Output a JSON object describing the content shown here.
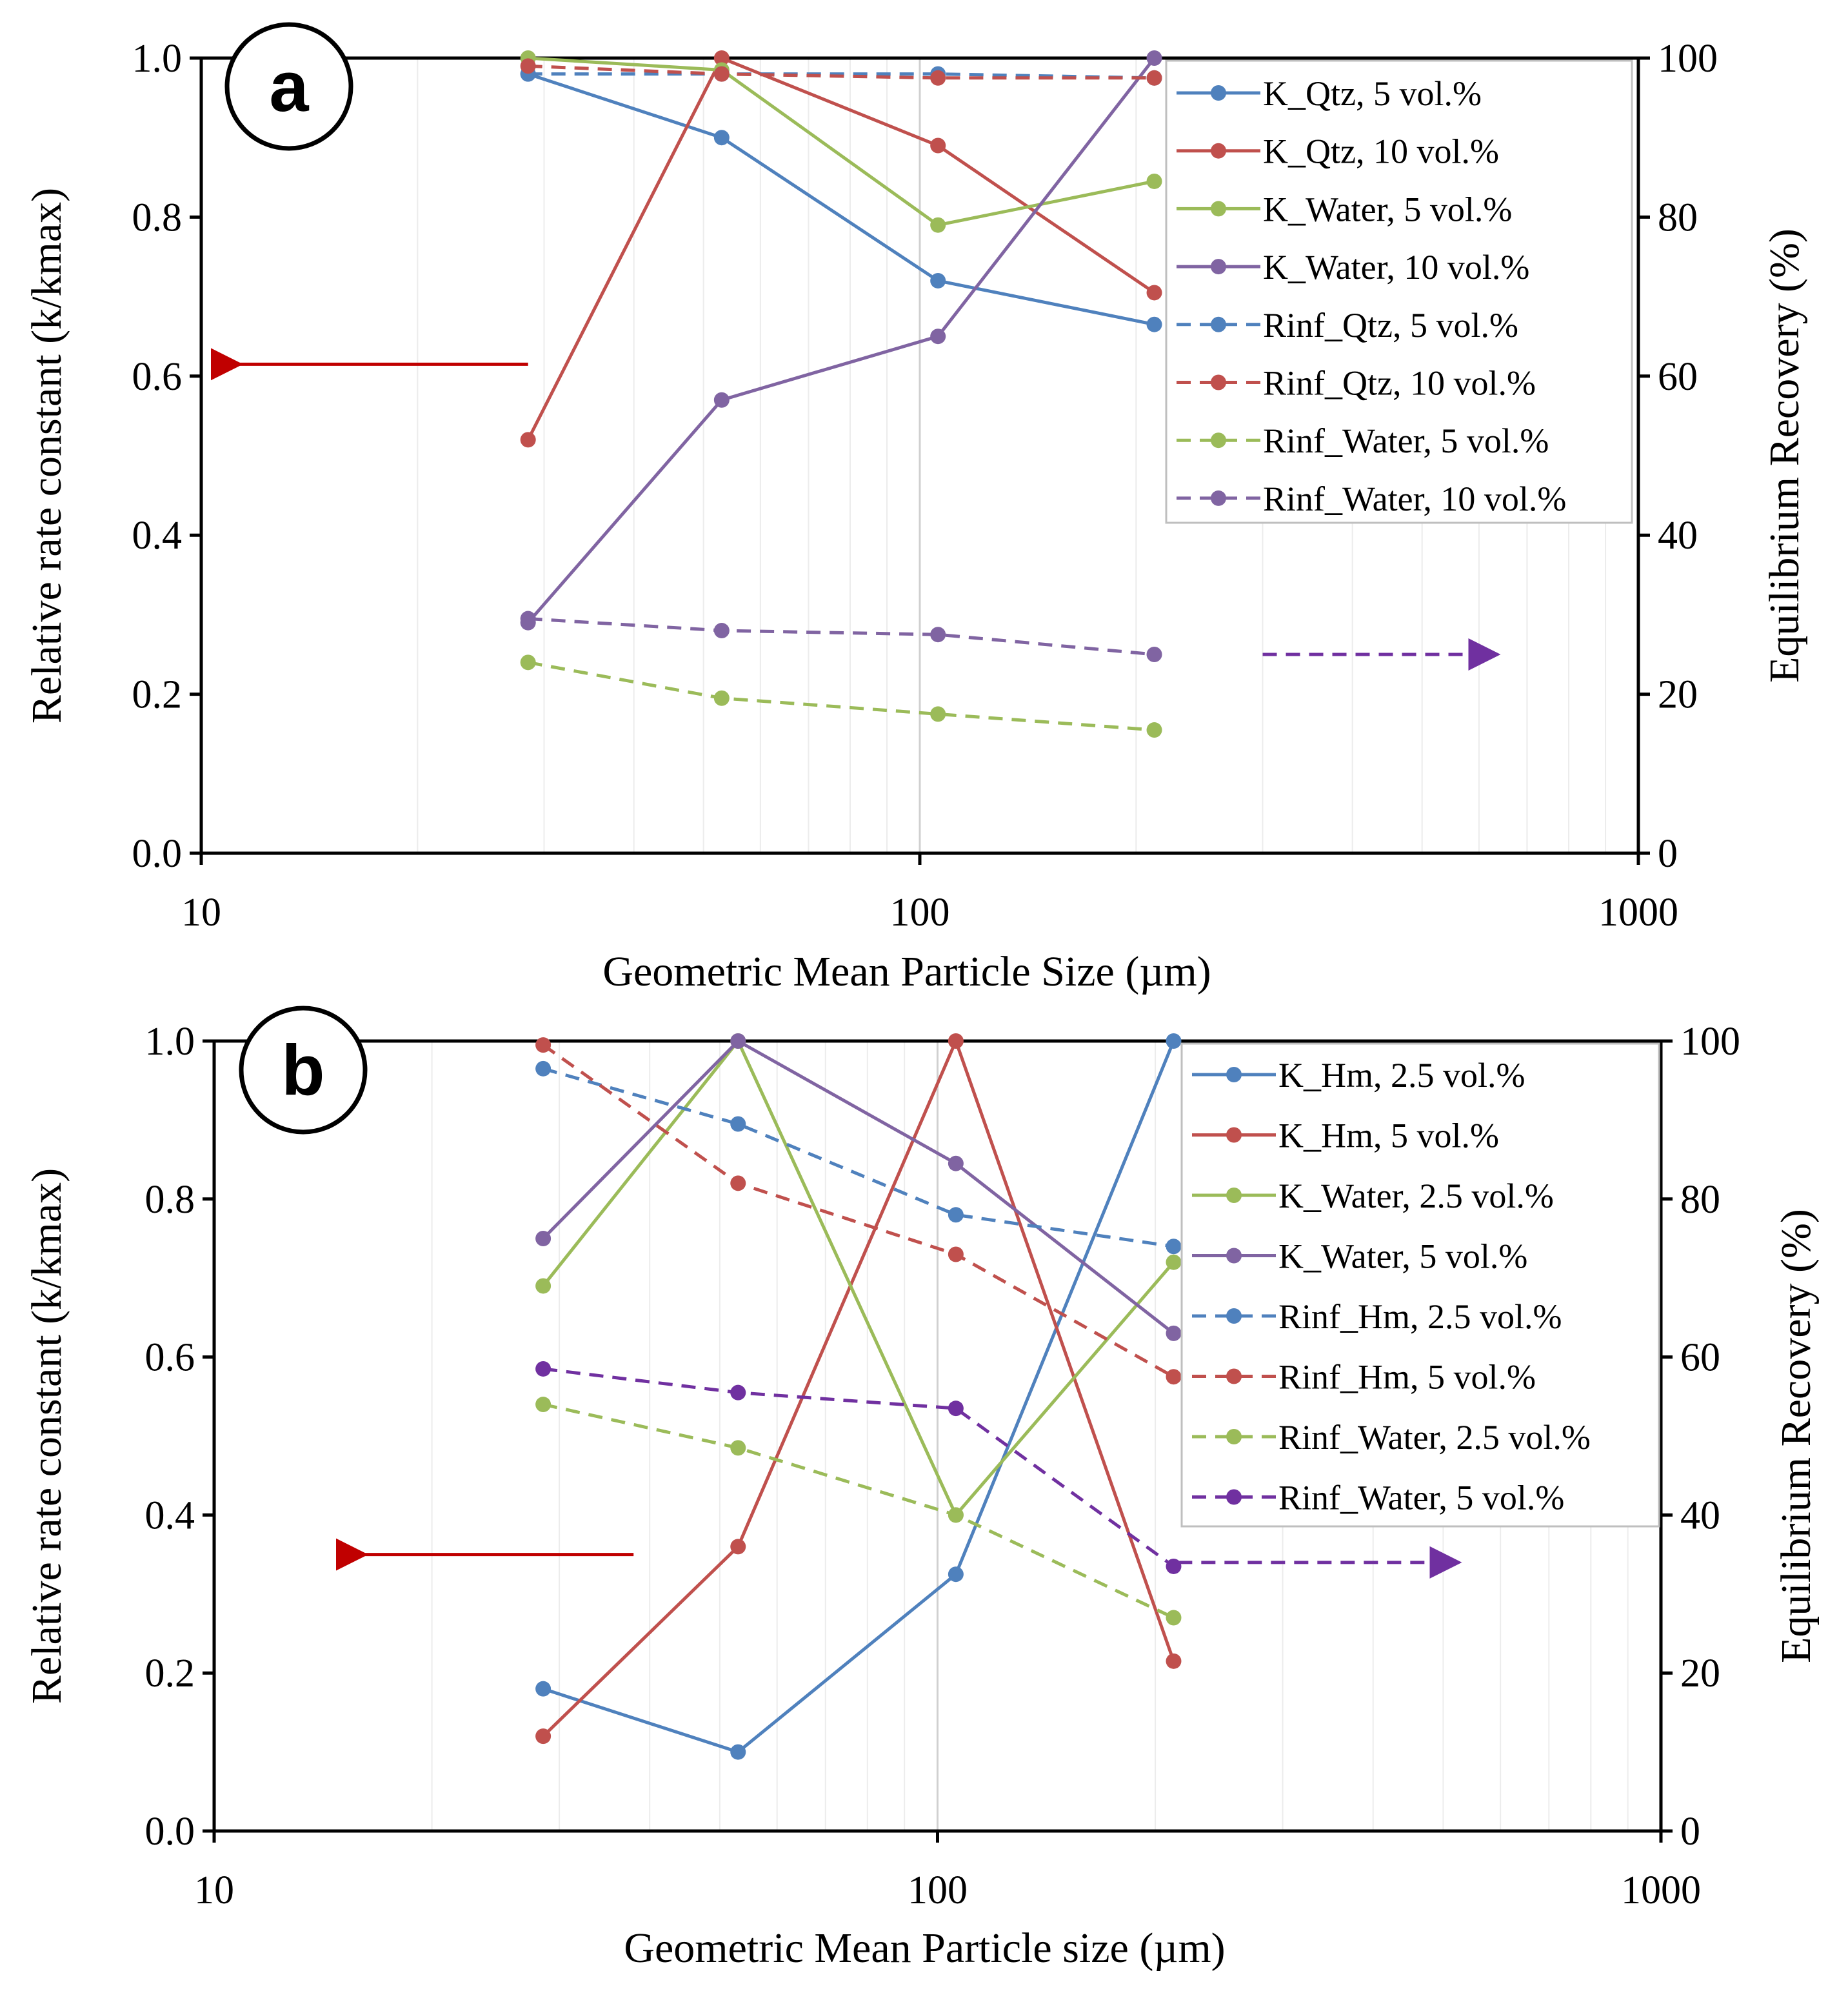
{
  "chart_data": [
    {
      "type": "line",
      "panel_label": "a",
      "xscale": "log",
      "xlim": [
        10,
        1000
      ],
      "xticks": [
        "10",
        "100",
        "1000"
      ],
      "xlabel": "Geometric Mean Particle Size (µm)",
      "ylabel": "Relative rate constant (k/kmax)",
      "y2label": "Equilibrium Recovery (%)",
      "ylim": [
        0,
        1
      ],
      "y2lim": [
        0,
        100
      ],
      "yticks": [
        "0.0",
        "0.2",
        "0.4",
        "0.6",
        "0.8",
        "1.0"
      ],
      "y2ticks": [
        "0",
        "20",
        "40",
        "60",
        "80",
        "100"
      ],
      "legend_position": "top-right",
      "x": [
        28.5,
        53,
        106,
        212
      ],
      "arrows": [
        {
          "axis": "left",
          "color": "#C00000",
          "x_from": 28.5,
          "x_to": 11.2,
          "y": 0.615
        },
        {
          "axis": "right",
          "color": "#7030A0",
          "x_from": 300,
          "x_to": 630,
          "y": 25
        }
      ],
      "series": [
        {
          "name": "K_Qtz, 5 vol.%",
          "axis": "left",
          "style": "solid",
          "color": "#4F81BD",
          "values": [
            0.98,
            0.9,
            0.72,
            0.665
          ]
        },
        {
          "name": "K_Qtz, 10 vol.%",
          "axis": "left",
          "style": "solid",
          "color": "#C0504D",
          "values": [
            0.52,
            1.0,
            0.89,
            0.705
          ]
        },
        {
          "name": "K_Water, 5 vol.%",
          "axis": "left",
          "style": "solid",
          "color": "#9BBB59",
          "values": [
            1.0,
            0.985,
            0.79,
            0.845
          ]
        },
        {
          "name": "K_Water, 10 vol.%",
          "axis": "left",
          "style": "solid",
          "color": "#8064A2",
          "values": [
            0.29,
            0.57,
            0.65,
            1.0
          ]
        },
        {
          "name": "Rinf_Qtz, 5 vol.%",
          "axis": "right",
          "style": "dashed",
          "color": "#4F81BD",
          "values": [
            98,
            98,
            98,
            97.5
          ]
        },
        {
          "name": "Rinf_Qtz, 10 vol.%",
          "axis": "right",
          "style": "dashed",
          "color": "#C0504D",
          "values": [
            99,
            98,
            97.5,
            97.5
          ]
        },
        {
          "name": "Rinf_Water, 5 vol.%",
          "axis": "right",
          "style": "dashed",
          "color": "#9BBB59",
          "values": [
            24,
            19.5,
            17.5,
            15.5
          ]
        },
        {
          "name": "Rinf_Water, 10 vol.%",
          "axis": "right",
          "style": "dashed",
          "color": "#8064A2",
          "values": [
            29.5,
            28,
            27.5,
            25
          ]
        }
      ]
    },
    {
      "type": "line",
      "panel_label": "b",
      "xscale": "log",
      "xlim": [
        10,
        1000
      ],
      "xticks": [
        "10",
        "100",
        "1000"
      ],
      "xlabel": "Geometric Mean Particle size (µm)",
      "ylabel": "Relative rate constant (k/kmax)",
      "y2label": "Equilibrium Recovery (%)",
      "ylim": [
        0,
        1
      ],
      "y2lim": [
        0,
        100
      ],
      "yticks": [
        "0.0",
        "0.2",
        "0.4",
        "0.6",
        "0.8",
        "1.0"
      ],
      "y2ticks": [
        "0",
        "20",
        "40",
        "60",
        "80",
        "100"
      ],
      "legend_position": "top-right",
      "x": [
        28.5,
        53,
        106,
        212
      ],
      "arrows": [
        {
          "axis": "left",
          "color": "#C00000",
          "x_from": 38,
          "x_to": 16,
          "y": 0.35
        },
        {
          "axis": "right",
          "color": "#7030A0",
          "x_from": 215,
          "x_to": 520,
          "y": 34
        }
      ],
      "series": [
        {
          "name": "K_Hm, 2.5 vol.%",
          "axis": "left",
          "style": "solid",
          "color": "#4F81BD",
          "values": [
            0.18,
            0.1,
            0.325,
            1.0
          ]
        },
        {
          "name": "K_Hm, 5 vol.%",
          "axis": "left",
          "style": "solid",
          "color": "#C0504D",
          "values": [
            0.12,
            0.36,
            1.0,
            0.215
          ]
        },
        {
          "name": "K_Water, 2.5 vol.%",
          "axis": "left",
          "style": "solid",
          "color": "#9BBB59",
          "values": [
            0.69,
            1.0,
            0.4,
            0.72
          ]
        },
        {
          "name": "K_Water, 5 vol.%",
          "axis": "left",
          "style": "solid",
          "color": "#8064A2",
          "values": [
            0.75,
            1.0,
            0.845,
            0.63
          ]
        },
        {
          "name": "Rinf_Hm, 2.5 vol.%",
          "axis": "right",
          "style": "dashed",
          "color": "#4F81BD",
          "values": [
            96.5,
            89.5,
            78,
            74
          ]
        },
        {
          "name": "Rinf_Hm, 5 vol.%",
          "axis": "right",
          "style": "dashed",
          "color": "#C0504D",
          "values": [
            99.5,
            82,
            73,
            57.5
          ]
        },
        {
          "name": "Rinf_Water, 2.5 vol.%",
          "axis": "right",
          "style": "dashed",
          "color": "#9BBB59",
          "values": [
            54,
            48.5,
            40,
            27
          ]
        },
        {
          "name": "Rinf_Water, 5 vol.%",
          "axis": "right",
          "style": "dashed",
          "color": "#7030A0",
          "values": [
            58.5,
            55.5,
            53.5,
            33.5
          ]
        }
      ]
    }
  ]
}
